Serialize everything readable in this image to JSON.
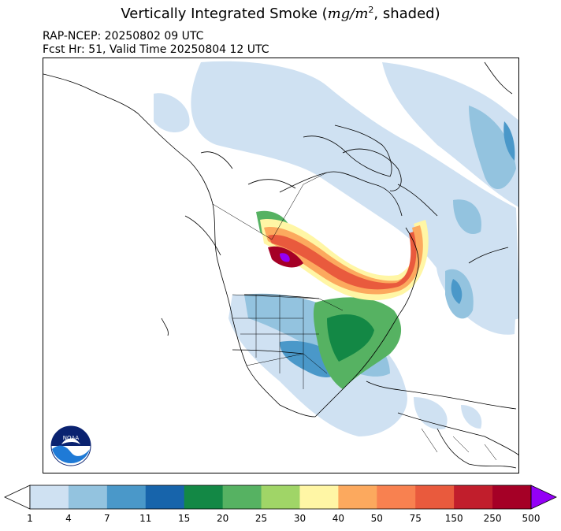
{
  "title": {
    "prefix": "Vertically Integrated Smoke (",
    "unit_main": "mg/m",
    "unit_exp": "2",
    "suffix": ", shaded)"
  },
  "subtitle_line1": "RAP-NCEP: 20250802 09 UTC",
  "subtitle_line2": "Fcst Hr: 51, Valid Time 20250804 12 UTC",
  "logo_text": "NOAA",
  "colorbar": {
    "ticks": [
      "1",
      "4",
      "7",
      "11",
      "15",
      "20",
      "25",
      "30",
      "40",
      "50",
      "75",
      "150",
      "250",
      "500"
    ],
    "colors": [
      "#cfe1f2",
      "#93c3df",
      "#4a98c9",
      "#1764ab",
      "#138845",
      "#56b262",
      "#a0d567",
      "#fff6a5",
      "#fca95e",
      "#f88150",
      "#e95a3d",
      "#c11e2c",
      "#a50026"
    ],
    "under_color": "#ffffff",
    "over_color": "#9400f6"
  }
}
